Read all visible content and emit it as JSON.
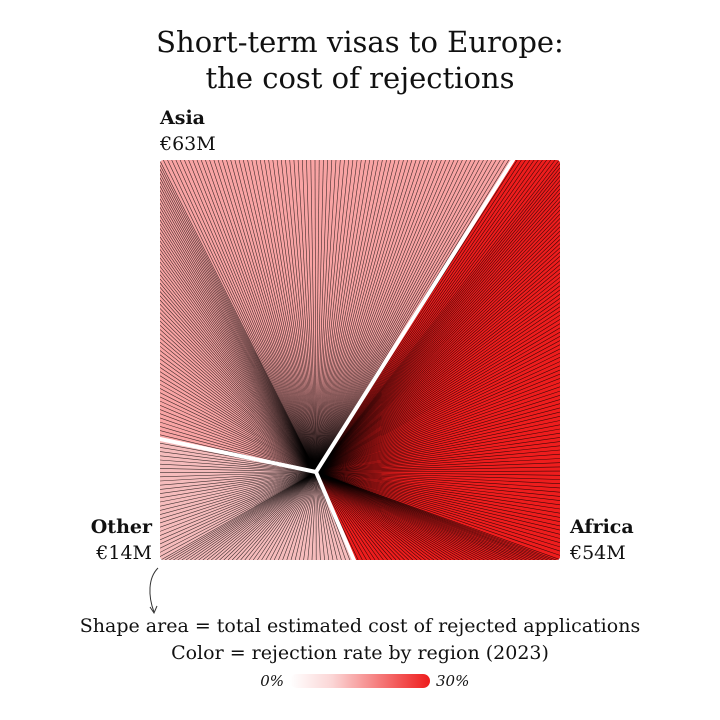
{
  "chart_data": {
    "type": "area",
    "title_lines": [
      "Short-term visas to Europe:",
      "the cost of rejections"
    ],
    "regions": [
      {
        "name": "Asia",
        "value_label": "€63M",
        "value": 63,
        "color": "#f9a4a4"
      },
      {
        "name": "Africa",
        "value_label": "€54M",
        "value": 54,
        "color": "#ee1d1d"
      },
      {
        "name": "Other",
        "value_label": "€14M",
        "value": 14,
        "color": "#f6bcbc"
      }
    ],
    "caption_lines": [
      "Shape area = total estimated cost of rejected applications",
      "Color = rejection rate by region (2023)"
    ],
    "legend": {
      "min_label": "0%",
      "max_label": "30%",
      "color_low": "#ffffff",
      "color_high": "#ee1c1c"
    }
  }
}
